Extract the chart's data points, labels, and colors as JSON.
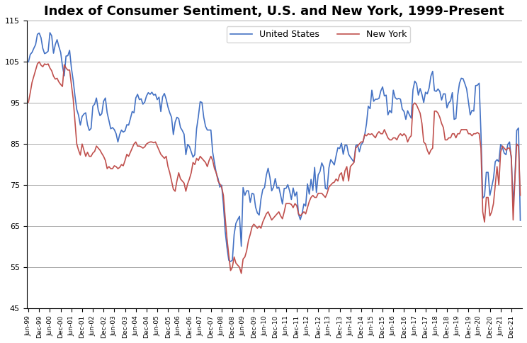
{
  "title": "Index of Consumer Sentiment, U.S. and New York, 1999-Present",
  "us_color": "#4472C4",
  "ny_color": "#C0504D",
  "legend_us": "United States",
  "legend_ny": "New York",
  "ylim": [
    45.0,
    115.0
  ],
  "yticks": [
    45.0,
    55.0,
    65.0,
    75.0,
    85.0,
    95.0,
    105.0,
    115.0
  ],
  "title_fontsize": 13,
  "line_width": 1.2,
  "us_monthly": [
    105.0,
    106.8,
    107.3,
    108.3,
    109.2,
    111.7,
    112.0,
    110.9,
    108.3,
    107.0,
    107.2,
    107.6,
    112.1,
    111.3,
    107.1,
    109.2,
    110.4,
    108.7,
    107.3,
    104.0,
    101.6,
    106.4,
    106.5,
    107.8,
    103.5,
    100.5,
    96.7,
    93.4,
    92.0,
    89.6,
    91.7,
    92.3,
    92.6,
    89.7,
    88.3,
    88.8,
    94.2,
    94.7,
    96.2,
    93.3,
    91.9,
    92.4,
    95.4,
    96.2,
    92.6,
    90.7,
    88.7,
    89.0,
    88.5,
    87.5,
    85.5,
    87.3,
    88.4,
    87.9,
    88.2,
    89.7,
    89.6,
    91.2,
    92.9,
    92.6,
    96.2,
    97.1,
    95.8,
    96.0,
    94.7,
    95.2,
    96.7,
    97.5,
    97.1,
    97.6,
    96.9,
    97.1,
    95.8,
    96.4,
    92.9,
    96.5,
    97.3,
    95.9,
    94.0,
    92.6,
    91.5,
    87.3,
    90.3,
    91.5,
    91.2,
    89.0,
    88.3,
    87.4,
    82.4,
    84.9,
    84.4,
    83.1,
    81.8,
    82.4,
    88.7,
    91.7,
    95.3,
    95.1,
    91.5,
    89.3,
    88.4,
    88.4,
    88.4,
    83.0,
    80.5,
    77.9,
    76.6,
    74.5,
    75.0,
    70.3,
    63.7,
    59.8,
    56.7,
    56.4,
    56.7,
    63.0,
    65.7,
    66.6,
    67.4,
    60.1,
    74.4,
    72.5,
    73.6,
    73.6,
    70.8,
    73.0,
    72.8,
    69.6,
    68.2,
    67.7,
    71.6,
    73.9,
    74.4,
    77.4,
    79.1,
    76.9,
    73.6,
    74.5,
    76.6,
    74.2,
    74.5,
    72.5,
    70.4,
    74.2,
    74.2,
    75.1,
    73.6,
    71.5,
    74.3,
    72.3,
    73.3,
    67.9,
    66.6,
    68.1,
    70.4,
    69.9,
    75.3,
    72.8,
    76.4,
    73.7,
    79.3,
    73.2,
    77.5,
    78.3,
    80.4,
    79.4,
    74.2,
    74.0,
    79.2,
    81.2,
    80.6,
    79.9,
    82.1,
    84.1,
    83.9,
    85.2,
    82.5,
    84.7,
    84.7,
    82.5,
    81.8,
    81.2,
    80.6,
    84.6,
    84.8,
    83.1,
    84.8,
    85.4,
    87.2,
    89.9,
    94.2,
    93.6,
    98.1,
    95.4,
    95.9,
    95.9,
    96.1,
    97.9,
    98.9,
    96.7,
    96.9,
    92.1,
    93.2,
    92.6,
    98.1,
    96.3,
    95.9,
    96.1,
    95.9,
    93.5,
    92.9,
    91.0,
    93.1,
    92.1,
    91.3,
    98.2,
    100.3,
    99.7,
    96.9,
    98.5,
    97.1,
    95.1,
    97.6,
    97.2,
    98.6,
    101.5,
    102.7,
    98.0,
    97.8,
    98.4,
    97.8,
    95.7,
    97.2,
    97.2,
    93.8,
    95.0,
    95.5,
    97.5,
    91.0,
    91.2,
    96.8,
    99.8,
    101.0,
    100.9,
    99.7,
    98.4,
    95.3,
    92.1,
    93.2,
    93.0,
    99.2,
    99.3,
    99.8,
    87.7,
    71.8,
    72.3,
    78.1,
    78.1,
    72.5,
    74.5,
    76.6,
    80.7,
    81.2,
    80.7,
    84.9,
    84.2,
    82.8,
    82.4,
    84.9,
    85.5,
    81.2,
    70.3,
    76.8,
    88.3,
    88.9,
    66.4
  ],
  "ny_monthly": [
    95.2,
    97.5,
    100.0,
    101.5,
    103.0,
    104.5,
    105.0,
    104.2,
    103.8,
    104.5,
    104.3,
    104.5,
    103.5,
    102.8,
    101.5,
    100.8,
    101.0,
    100.1,
    99.5,
    99.0,
    104.3,
    103.5,
    103.0,
    103.0,
    99.5,
    96.0,
    90.5,
    85.0,
    83.5,
    82.3,
    85.0,
    83.5,
    82.0,
    83.0,
    82.0,
    82.0,
    82.8,
    83.2,
    84.5,
    84.0,
    83.5,
    82.7,
    82.0,
    81.0,
    79.0,
    79.5,
    79.0,
    79.0,
    79.7,
    79.5,
    79.0,
    79.3,
    80.0,
    79.7,
    81.0,
    82.5,
    82.0,
    83.0,
    84.0,
    85.0,
    85.5,
    84.5,
    84.5,
    84.3,
    84.0,
    84.3,
    85.0,
    85.3,
    85.5,
    85.5,
    85.3,
    85.5,
    84.5,
    83.5,
    82.5,
    82.0,
    81.5,
    82.0,
    79.5,
    78.0,
    76.0,
    74.0,
    73.5,
    76.0,
    78.0,
    76.5,
    76.0,
    75.5,
    73.5,
    75.3,
    76.5,
    78.0,
    80.5,
    80.0,
    81.5,
    81.0,
    82.0,
    81.5,
    81.0,
    80.5,
    79.5,
    81.0,
    82.0,
    81.0,
    79.0,
    78.0,
    76.0,
    75.3,
    74.5,
    72.5,
    67.0,
    62.0,
    58.0,
    54.2,
    55.0,
    57.5,
    56.0,
    55.5,
    55.0,
    53.5,
    57.0,
    57.5,
    59.0,
    61.5,
    63.0,
    64.8,
    65.5,
    65.0,
    64.5,
    65.0,
    64.5,
    66.0,
    67.0,
    68.0,
    68.5,
    67.5,
    66.5,
    67.0,
    67.5,
    68.0,
    68.5,
    67.5,
    66.8,
    68.5,
    70.5,
    70.5,
    70.5,
    70.3,
    69.5,
    70.5,
    70.0,
    68.0,
    67.5,
    68.0,
    68.5,
    68.0,
    69.5,
    71.0,
    72.0,
    72.5,
    72.0,
    72.0,
    73.0,
    73.0,
    73.0,
    72.5,
    72.0,
    73.0,
    74.5,
    75.0,
    75.5,
    75.7,
    76.5,
    76.0,
    77.5,
    78.0,
    76.0,
    78.5,
    79.5,
    76.0,
    79.5,
    80.0,
    80.5,
    84.0,
    84.5,
    85.0,
    85.5,
    85.5,
    87.3,
    87.0,
    87.5,
    87.3,
    87.5,
    87.0,
    86.5,
    87.5,
    88.0,
    87.5,
    87.5,
    88.5,
    87.5,
    86.5,
    86.0,
    86.0,
    86.5,
    86.5,
    86.0,
    87.0,
    87.5,
    87.0,
    87.5,
    87.0,
    85.5,
    86.5,
    87.0,
    94.5,
    95.0,
    94.5,
    93.5,
    92.5,
    90.0,
    85.5,
    85.0,
    83.5,
    82.5,
    83.5,
    84.0,
    93.0,
    93.0,
    92.5,
    91.5,
    90.0,
    89.0,
    86.0,
    86.0,
    86.5,
    86.5,
    87.5,
    87.5,
    86.5,
    87.5,
    87.5,
    88.5,
    88.5,
    88.5,
    88.5,
    87.5,
    87.5,
    87.0,
    87.5,
    87.5,
    87.8,
    87.5,
    84.0,
    68.5,
    66.0,
    72.0,
    72.0,
    67.5,
    68.5,
    70.5,
    75.0,
    79.5,
    75.0,
    83.0,
    84.5,
    84.0,
    83.5,
    84.0,
    84.0,
    82.0,
    66.5,
    76.5,
    85.0,
    84.5,
    72.5
  ],
  "xtick_positions": [
    0,
    6,
    12,
    18,
    24,
    30,
    36,
    42,
    48,
    54,
    60,
    66,
    72,
    78,
    84,
    90,
    96,
    102,
    108,
    114,
    120,
    126,
    132,
    138,
    144,
    150,
    156,
    162,
    168,
    174,
    180,
    186,
    192,
    198,
    204,
    210,
    216,
    222,
    228,
    234,
    240,
    246,
    252,
    258,
    264,
    270
  ],
  "xtick_labels": [
    "Jun-99",
    "Dec-99",
    "Jun-00",
    "Dec-00",
    "Jun-01",
    "Dec-01",
    "Jun-02",
    "Dec-02",
    "Jun-03",
    "Dec-03",
    "Jun-04",
    "Dec-04",
    "Jun-05",
    "Dec-05",
    "Jun-06",
    "Dec-06",
    "Jun-07",
    "Dec-07",
    "Jun-08",
    "Dec-08",
    "Jun-09",
    "Dec-09",
    "Jun-10",
    "Dec-10",
    "Jun-11",
    "Dec-11",
    "Jun-12",
    "Dec-12",
    "Jun-13",
    "Dec-13",
    "Jun-14",
    "Dec-14",
    "Jun-15",
    "Dec-15",
    "Jun-16",
    "Dec-16",
    "Jun-17",
    "Dec-17",
    "Jun-18",
    "Dec-18",
    "Jun-19",
    "Dec-19",
    "Jun-20",
    "Dec-20",
    "Jun-21",
    "Dec-21"
  ]
}
